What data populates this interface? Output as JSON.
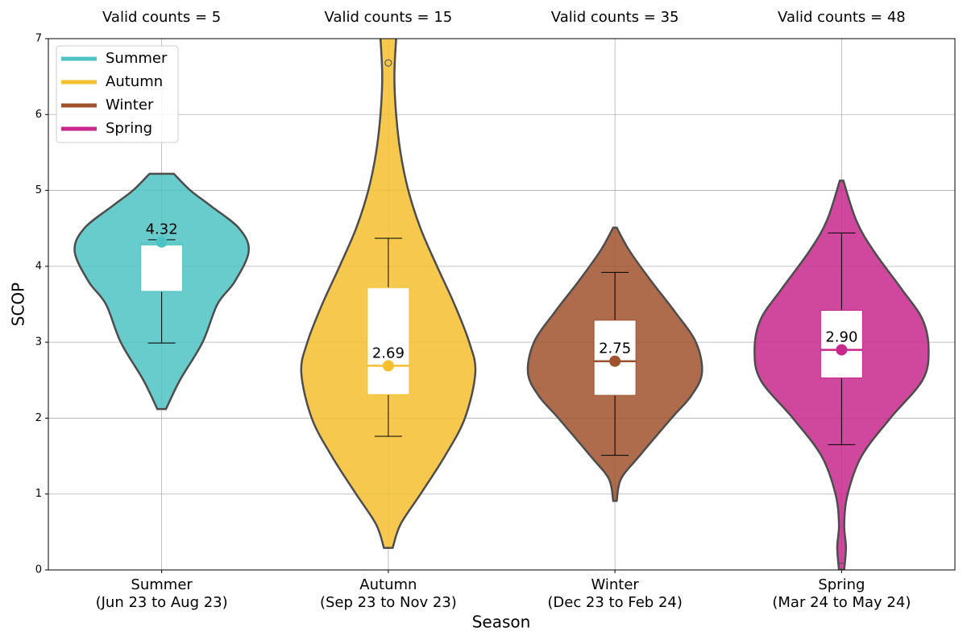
{
  "chart_data": {
    "type": "violin",
    "x_label": "Season",
    "y_label": "SCOP",
    "ylim": [
      0,
      7
    ],
    "yticks": [
      0,
      1,
      2,
      3,
      4,
      5,
      6,
      7
    ],
    "grid": true,
    "legend": "upper left",
    "categories": [
      [
        "Summer",
        "(Jun 23 to Aug 23)"
      ],
      [
        "Autumn",
        "(Sep 23 to Nov 23)"
      ],
      [
        "Winter",
        "(Dec 23 to Feb 24)"
      ],
      [
        "Spring",
        "(Mar 24 to May 24)"
      ]
    ],
    "series": [
      {
        "name": "Summer",
        "color": "#4fc3c3",
        "count": 5,
        "count_label": "Valid counts = 5",
        "violin": {
          "y": [
            2.12,
            2.5,
            3.0,
            3.5,
            3.8,
            4.2,
            4.5,
            4.8,
            5.0,
            5.22
          ],
          "density": [
            0.05,
            0.21,
            0.47,
            0.64,
            0.84,
            1.0,
            0.89,
            0.56,
            0.33,
            0.14
          ]
        },
        "q1": 3.67,
        "median": 4.29,
        "q3": 4.31,
        "whisker_low": 2.99,
        "whisker_high": 4.35,
        "mean": 4.32,
        "mean_label": "4.32",
        "outliers": []
      },
      {
        "name": "Autumn",
        "color": "#f5c02f",
        "count": 15,
        "count_label": "Valid counts = 15",
        "violin": {
          "y": [
            0.29,
            0.6,
            1.0,
            1.5,
            2.0,
            2.6,
            3.0,
            3.5,
            4.0,
            4.5,
            5.0,
            5.5,
            6.0,
            6.5,
            7.0,
            7.3
          ],
          "density": [
            0.05,
            0.14,
            0.37,
            0.65,
            0.88,
            1.0,
            0.93,
            0.76,
            0.56,
            0.37,
            0.23,
            0.14,
            0.09,
            0.07,
            0.09,
            0.11
          ]
        },
        "q1": 2.31,
        "median": 2.69,
        "q3": 3.72,
        "whisker_low": 1.76,
        "whisker_high": 4.37,
        "mean": 2.69,
        "mean_label": "2.69",
        "outliers": [
          6.68
        ]
      },
      {
        "name": "Winter",
        "color": "#a0522d",
        "count": 35,
        "count_label": "Valid counts = 35",
        "violin": {
          "y": [
            0.91,
            1.2,
            1.5,
            2.0,
            2.3,
            2.6,
            3.0,
            3.4,
            3.8,
            4.2,
            4.51
          ],
          "density": [
            0.02,
            0.07,
            0.28,
            0.65,
            0.88,
            1.0,
            0.93,
            0.69,
            0.42,
            0.17,
            0.02
          ]
        },
        "q1": 2.3,
        "median": 2.75,
        "q3": 3.29,
        "whisker_low": 1.51,
        "whisker_high": 3.92,
        "mean": 2.75,
        "mean_label": "2.75",
        "outliers": []
      },
      {
        "name": "Spring",
        "color": "#c8288c",
        "count": 48,
        "count_label": "Valid counts = 48",
        "violin": {
          "y": [
            0.0,
            0.3,
            0.6,
            1.0,
            1.5,
            2.0,
            2.5,
            2.9,
            3.3,
            3.7,
            4.2,
            4.6,
            5.13
          ],
          "density": [
            0.03,
            0.05,
            0.03,
            0.07,
            0.23,
            0.56,
            0.93,
            1.0,
            0.93,
            0.69,
            0.37,
            0.17,
            0.02
          ]
        },
        "q1": 2.53,
        "median": 2.9,
        "q3": 3.42,
        "whisker_low": 1.65,
        "whisker_high": 4.44,
        "mean": 2.9,
        "mean_label": "2.90",
        "outliers": [
          0.05
        ]
      }
    ]
  }
}
